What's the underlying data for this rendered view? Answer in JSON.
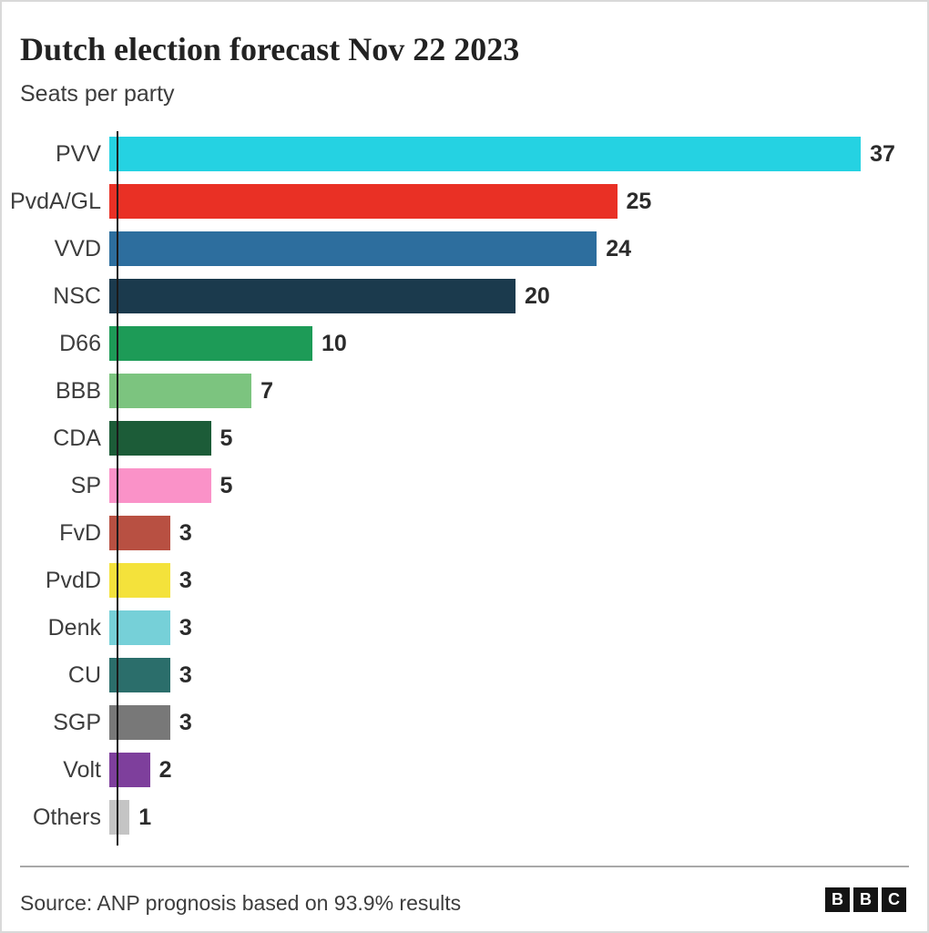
{
  "header": {
    "title": "Dutch election forecast Nov 22 2023",
    "subtitle": "Seats per party"
  },
  "chart_data": {
    "type": "bar",
    "orientation": "horizontal",
    "title": "Dutch election forecast Nov 22 2023",
    "subtitle": "Seats per party",
    "categories": [
      "PVV",
      "PvdA/GL",
      "VVD",
      "NSC",
      "D66",
      "BBB",
      "CDA",
      "SP",
      "FvD",
      "PvdD",
      "Denk",
      "CU",
      "SGP",
      "Volt",
      "Others"
    ],
    "values": [
      37,
      25,
      24,
      20,
      10,
      7,
      5,
      5,
      3,
      3,
      3,
      3,
      3,
      2,
      1
    ],
    "bar_colors": [
      "#25d2e2",
      "#e93025",
      "#2d6e9e",
      "#1b3a4d",
      "#1d9b57",
      "#7cc47f",
      "#1c5c38",
      "#fa92c8",
      "#b85042",
      "#f4e23b",
      "#76d0d8",
      "#2b6e6b",
      "#787878",
      "#7e3f9c",
      "#c4c4c4"
    ],
    "xlim": [
      0,
      37
    ],
    "value_labels_shown": true,
    "grid": false,
    "legend": false,
    "axis_color": "#1a1a1a"
  },
  "footer": {
    "source": "Source: ANP prognosis based on 93.9% results",
    "logo_letters": [
      "B",
      "B",
      "C"
    ]
  }
}
